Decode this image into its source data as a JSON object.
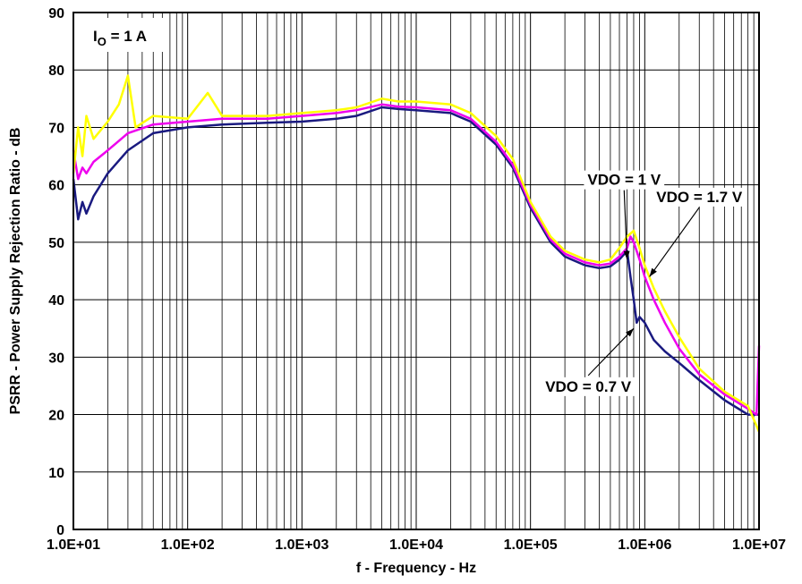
{
  "chart_data": {
    "type": "line",
    "xscale": "log",
    "xlabel": "f - Frequency - Hz",
    "ylabel": "PSRR - Power Supply Rejection Ratio - dB",
    "xlim": [
      10,
      10000000
    ],
    "ylim": [
      0,
      90
    ],
    "xticks": [
      "1.0E+01",
      "1.0E+02",
      "1.0E+03",
      "1.0E+04",
      "1.0E+05",
      "1.0E+06",
      "1.0E+07"
    ],
    "yticks": [
      "0",
      "10",
      "20",
      "30",
      "40",
      "50",
      "60",
      "70",
      "80",
      "90"
    ],
    "grid": true,
    "condition": {
      "main": "I",
      "sub": "O",
      "rest": " = 1 A"
    },
    "series": [
      {
        "color": "#1a1a80",
        "x": [
          10,
          11,
          12,
          13,
          15,
          20,
          30,
          50,
          100,
          200,
          500,
          1000,
          2000,
          3000,
          5000,
          7000,
          10000,
          20000,
          30000,
          50000,
          70000,
          100000,
          150000,
          200000,
          300000,
          400000,
          500000,
          600000,
          700000,
          750000,
          800000,
          850000,
          900000,
          1000000,
          1200000,
          1500000,
          2000000,
          3000000,
          5000000,
          8000000,
          10000000
        ],
        "y": [
          61,
          54,
          57,
          55,
          58,
          62,
          66,
          69,
          70,
          70.5,
          70.8,
          71,
          71.5,
          72,
          73.5,
          73.2,
          73,
          72.5,
          71,
          67,
          63,
          56,
          50,
          47.5,
          46,
          45.5,
          45.8,
          47,
          48.5,
          44,
          40,
          36,
          37,
          36,
          33,
          31,
          29,
          26,
          22.5,
          20,
          20
        ]
      },
      {
        "color": "#ee00ee",
        "x": [
          10,
          11,
          12,
          13,
          15,
          20,
          30,
          50,
          100,
          200,
          500,
          1000,
          2000,
          3000,
          5000,
          7000,
          10000,
          20000,
          30000,
          50000,
          70000,
          100000,
          150000,
          200000,
          300000,
          400000,
          500000,
          600000,
          700000,
          750000,
          800000,
          900000,
          1000000,
          1200000,
          1500000,
          2000000,
          3000000,
          5000000,
          8000000,
          9500000,
          10000000
        ],
        "y": [
          66,
          61,
          63,
          62,
          64,
          66,
          69,
          70.5,
          71,
          71.5,
          71.5,
          72,
          72.5,
          73,
          74,
          73.6,
          73.5,
          73,
          71.5,
          67.5,
          63.5,
          56.5,
          50.5,
          48,
          46.5,
          46,
          46.3,
          47.5,
          49,
          51,
          50,
          47,
          44,
          40,
          36,
          31.5,
          27,
          23.5,
          21,
          20,
          32
        ]
      },
      {
        "color": "#ffff00",
        "x": [
          10,
          11,
          12,
          13,
          15,
          20,
          25,
          30,
          35,
          50,
          100,
          150,
          200,
          500,
          1000,
          2000,
          3000,
          5000,
          7000,
          10000,
          20000,
          30000,
          50000,
          70000,
          100000,
          150000,
          200000,
          300000,
          400000,
          500000,
          600000,
          700000,
          800000,
          900000,
          1000000,
          1200000,
          1500000,
          2000000,
          3000000,
          5000000,
          8000000,
          10000000
        ],
        "y": [
          62,
          70,
          65,
          72,
          68,
          71,
          74,
          79,
          70,
          72,
          71.5,
          76,
          72,
          72,
          72.5,
          73,
          73.5,
          75,
          74.5,
          74.5,
          74,
          72.5,
          68.5,
          64.5,
          57,
          51,
          48.5,
          47,
          46.5,
          47,
          49,
          51,
          52,
          49,
          46,
          42,
          38,
          33.5,
          28,
          24,
          21.5,
          17
        ]
      }
    ],
    "annotations": [
      {
        "text": "VDO = 1 V",
        "x": 660000,
        "y": 60,
        "arrow_to": [
          700000,
          47
        ]
      },
      {
        "text": "VDO = 1.7 V",
        "x": 3000000,
        "y": 57,
        "arrow_to": [
          1100000,
          44
        ]
      },
      {
        "text": "VDO = 0.7 V",
        "x": 320000,
        "y": 24,
        "arrow_to": [
          800000,
          35
        ]
      }
    ]
  }
}
